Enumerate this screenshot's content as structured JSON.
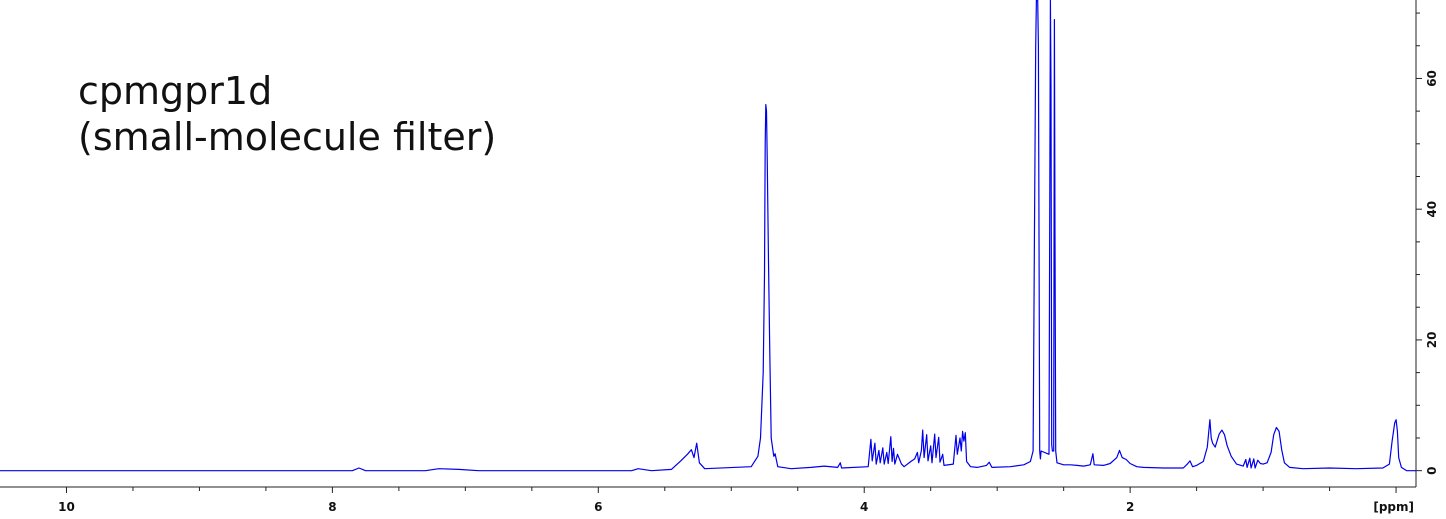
{
  "chart_data": {
    "type": "line",
    "title": "",
    "annotation_lines": [
      "cpmgpr1d",
      "(small-molecule filter)"
    ],
    "xlabel": "[ppm]",
    "ylabel": "",
    "x_reversed": true,
    "xlim": [
      10.5,
      -0.15
    ],
    "ylim": [
      -2.5,
      72
    ],
    "x_ticks": [
      10,
      8,
      6,
      4,
      2
    ],
    "x_tick_labels": [
      "10",
      "8",
      "6",
      "4",
      "2"
    ],
    "y_ticks": [
      0,
      20,
      40,
      60
    ],
    "y_tick_labels": [
      "0",
      "20",
      "40",
      "60"
    ],
    "grid": false,
    "series": [
      {
        "color": "#0000ee",
        "points": [
          [
            10.5,
            0
          ],
          [
            7.85,
            0
          ],
          [
            7.8,
            0.4
          ],
          [
            7.75,
            0
          ],
          [
            7.3,
            0
          ],
          [
            7.2,
            0.3
          ],
          [
            7.05,
            0.2
          ],
          [
            6.9,
            0
          ],
          [
            5.75,
            0
          ],
          [
            5.7,
            0.3
          ],
          [
            5.6,
            0
          ],
          [
            5.45,
            0.2
          ],
          [
            5.38,
            1.5
          ],
          [
            5.33,
            2.5
          ],
          [
            5.3,
            3.2
          ],
          [
            5.28,
            2.0
          ],
          [
            5.26,
            4.2
          ],
          [
            5.24,
            1.2
          ],
          [
            5.2,
            0.3
          ],
          [
            4.85,
            0.6
          ],
          [
            4.8,
            2.2
          ],
          [
            4.78,
            5.0
          ],
          [
            4.76,
            15.0
          ],
          [
            4.75,
            30.0
          ],
          [
            4.745,
            50.0
          ],
          [
            4.74,
            56.0
          ],
          [
            4.735,
            55.0
          ],
          [
            4.73,
            48.0
          ],
          [
            4.72,
            32.0
          ],
          [
            4.71,
            18.0
          ],
          [
            4.7,
            5.0
          ],
          [
            4.68,
            2.2
          ],
          [
            4.67,
            2.6
          ],
          [
            4.65,
            0.6
          ],
          [
            4.55,
            0.3
          ],
          [
            4.4,
            0.5
          ],
          [
            4.3,
            0.7
          ],
          [
            4.2,
            0.5
          ],
          [
            4.18,
            1.2
          ],
          [
            4.17,
            0.4
          ],
          [
            3.97,
            0.6
          ],
          [
            3.95,
            4.8
          ],
          [
            3.94,
            1.5
          ],
          [
            3.92,
            4.2
          ],
          [
            3.91,
            1.0
          ],
          [
            3.89,
            3.1
          ],
          [
            3.88,
            1.2
          ],
          [
            3.86,
            3.5
          ],
          [
            3.85,
            1.0
          ],
          [
            3.83,
            2.8
          ],
          [
            3.82,
            1.1
          ],
          [
            3.8,
            5.2
          ],
          [
            3.79,
            1.4
          ],
          [
            3.78,
            3.4
          ],
          [
            3.77,
            1.0
          ],
          [
            3.75,
            2.5
          ],
          [
            3.72,
            1.0
          ],
          [
            3.7,
            0.6
          ],
          [
            3.65,
            1.4
          ],
          [
            3.62,
            1.8
          ],
          [
            3.6,
            2.8
          ],
          [
            3.59,
            1.2
          ],
          [
            3.57,
            3.1
          ],
          [
            3.56,
            6.2
          ],
          [
            3.55,
            2.0
          ],
          [
            3.53,
            5.5
          ],
          [
            3.52,
            1.5
          ],
          [
            3.5,
            3.8
          ],
          [
            3.49,
            1.2
          ],
          [
            3.47,
            5.6
          ],
          [
            3.46,
            2.0
          ],
          [
            3.44,
            5.1
          ],
          [
            3.43,
            1.3
          ],
          [
            3.41,
            2.5
          ],
          [
            3.4,
            0.8
          ],
          [
            3.33,
            1.0
          ],
          [
            3.31,
            5.4
          ],
          [
            3.3,
            2.5
          ],
          [
            3.28,
            5.0
          ],
          [
            3.27,
            3.0
          ],
          [
            3.26,
            6.0
          ],
          [
            3.25,
            4.5
          ],
          [
            3.24,
            5.8
          ],
          [
            3.23,
            1.4
          ],
          [
            3.2,
            0.6
          ],
          [
            3.15,
            0.5
          ],
          [
            3.08,
            0.8
          ],
          [
            3.06,
            1.3
          ],
          [
            3.04,
            0.5
          ],
          [
            2.9,
            0.6
          ],
          [
            2.8,
            0.9
          ],
          [
            2.75,
            1.4
          ],
          [
            2.73,
            3.0
          ],
          [
            2.72,
            35.0
          ],
          [
            2.71,
            65.0
          ],
          [
            2.705,
            72.0
          ],
          [
            2.695,
            72.0
          ],
          [
            2.69,
            65.0
          ],
          [
            2.68,
            3.0
          ],
          [
            2.675,
            1.8
          ],
          [
            2.67,
            3.0
          ],
          [
            2.61,
            2.5
          ],
          [
            2.6,
            72.0
          ],
          [
            2.595,
            59.0
          ],
          [
            2.59,
            4.0
          ],
          [
            2.585,
            3.0
          ],
          [
            2.575,
            3.0
          ],
          [
            2.57,
            69.0
          ],
          [
            2.565,
            36.0
          ],
          [
            2.56,
            3.0
          ],
          [
            2.55,
            1.2
          ],
          [
            2.5,
            0.9
          ],
          [
            2.45,
            0.9
          ],
          [
            2.4,
            0.8
          ],
          [
            2.35,
            0.7
          ],
          [
            2.3,
            0.9
          ],
          [
            2.28,
            2.6
          ],
          [
            2.27,
            0.9
          ],
          [
            2.2,
            0.8
          ],
          [
            2.15,
            1.1
          ],
          [
            2.1,
            2.0
          ],
          [
            2.08,
            3.1
          ],
          [
            2.06,
            2.0
          ],
          [
            2.03,
            1.7
          ],
          [
            2.0,
            1.1
          ],
          [
            1.95,
            0.6
          ],
          [
            1.9,
            0.5
          ],
          [
            1.75,
            0.4
          ],
          [
            1.6,
            0.4
          ],
          [
            1.57,
            1.0
          ],
          [
            1.55,
            1.5
          ],
          [
            1.53,
            0.6
          ],
          [
            1.5,
            0.8
          ],
          [
            1.45,
            1.4
          ],
          [
            1.42,
            3.6
          ],
          [
            1.4,
            7.8
          ],
          [
            1.39,
            5.0
          ],
          [
            1.38,
            4.2
          ],
          [
            1.36,
            3.6
          ],
          [
            1.33,
            5.6
          ],
          [
            1.31,
            6.2
          ],
          [
            1.29,
            5.5
          ],
          [
            1.27,
            3.8
          ],
          [
            1.24,
            2.2
          ],
          [
            1.2,
            1.0
          ],
          [
            1.15,
            0.7
          ],
          [
            1.13,
            1.7
          ],
          [
            1.12,
            0.5
          ],
          [
            1.1,
            1.9
          ],
          [
            1.09,
            0.4
          ],
          [
            1.07,
            1.8
          ],
          [
            1.06,
            0.4
          ],
          [
            1.04,
            1.6
          ],
          [
            1.02,
            1.1
          ],
          [
            1.0,
            1.0
          ],
          [
            0.97,
            1.2
          ],
          [
            0.94,
            2.8
          ],
          [
            0.92,
            5.5
          ],
          [
            0.9,
            6.6
          ],
          [
            0.88,
            6.0
          ],
          [
            0.86,
            3.2
          ],
          [
            0.84,
            1.2
          ],
          [
            0.8,
            0.5
          ],
          [
            0.7,
            0.3
          ],
          [
            0.5,
            0.4
          ],
          [
            0.3,
            0.3
          ],
          [
            0.1,
            0.4
          ],
          [
            0.05,
            1.0
          ],
          [
            0.03,
            4.5
          ],
          [
            0.01,
            7.3
          ],
          [
            0.0,
            7.8
          ],
          [
            -0.01,
            6.0
          ],
          [
            -0.02,
            2.0
          ],
          [
            -0.04,
            0.5
          ],
          [
            -0.08,
            0
          ],
          [
            -0.15,
            0
          ]
        ]
      }
    ]
  }
}
